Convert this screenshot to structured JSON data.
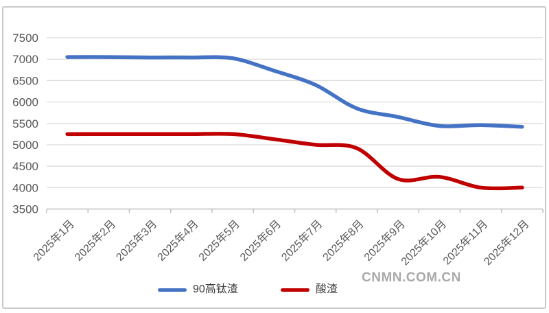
{
  "watermark": "CNMN.COM.CN",
  "colors": {
    "series_blue": "#4472C4",
    "series_red": "#C00000",
    "gridline": "#D9D9D9",
    "axis_line": "#BFBFBF",
    "axis_text": "#595959",
    "legend_text": "#3d3d3d",
    "frame_border": "#c9c9c9",
    "watermark_text": "#aaaaaa"
  },
  "chart_data": {
    "type": "line",
    "title": "",
    "xlabel": "",
    "ylabel": "",
    "categories": [
      "2025年1月",
      "2025年2月",
      "2025年3月",
      "2025年4月",
      "2025年5月",
      "2025年6月",
      "2025年7月",
      "2025年8月",
      "2025年9月",
      "2025年10月",
      "2025年11月",
      "2025年12月"
    ],
    "yticks": [
      3500,
      4000,
      4500,
      5000,
      5500,
      6000,
      6500,
      7000,
      7500
    ],
    "ylim": [
      3500,
      7500
    ],
    "grid": true,
    "line_smoothing": true,
    "legend_position": "bottom",
    "series": [
      {
        "name": "90高钛渣",
        "color": "#4472C4",
        "values": [
          7050,
          7050,
          7040,
          7040,
          7020,
          6730,
          6400,
          5850,
          5650,
          5440,
          5460,
          5420
        ]
      },
      {
        "name": "酸渣",
        "color": "#C00000",
        "values": [
          5250,
          5250,
          5250,
          5250,
          5250,
          5130,
          5000,
          4920,
          4200,
          4250,
          4000,
          4000
        ]
      }
    ]
  }
}
